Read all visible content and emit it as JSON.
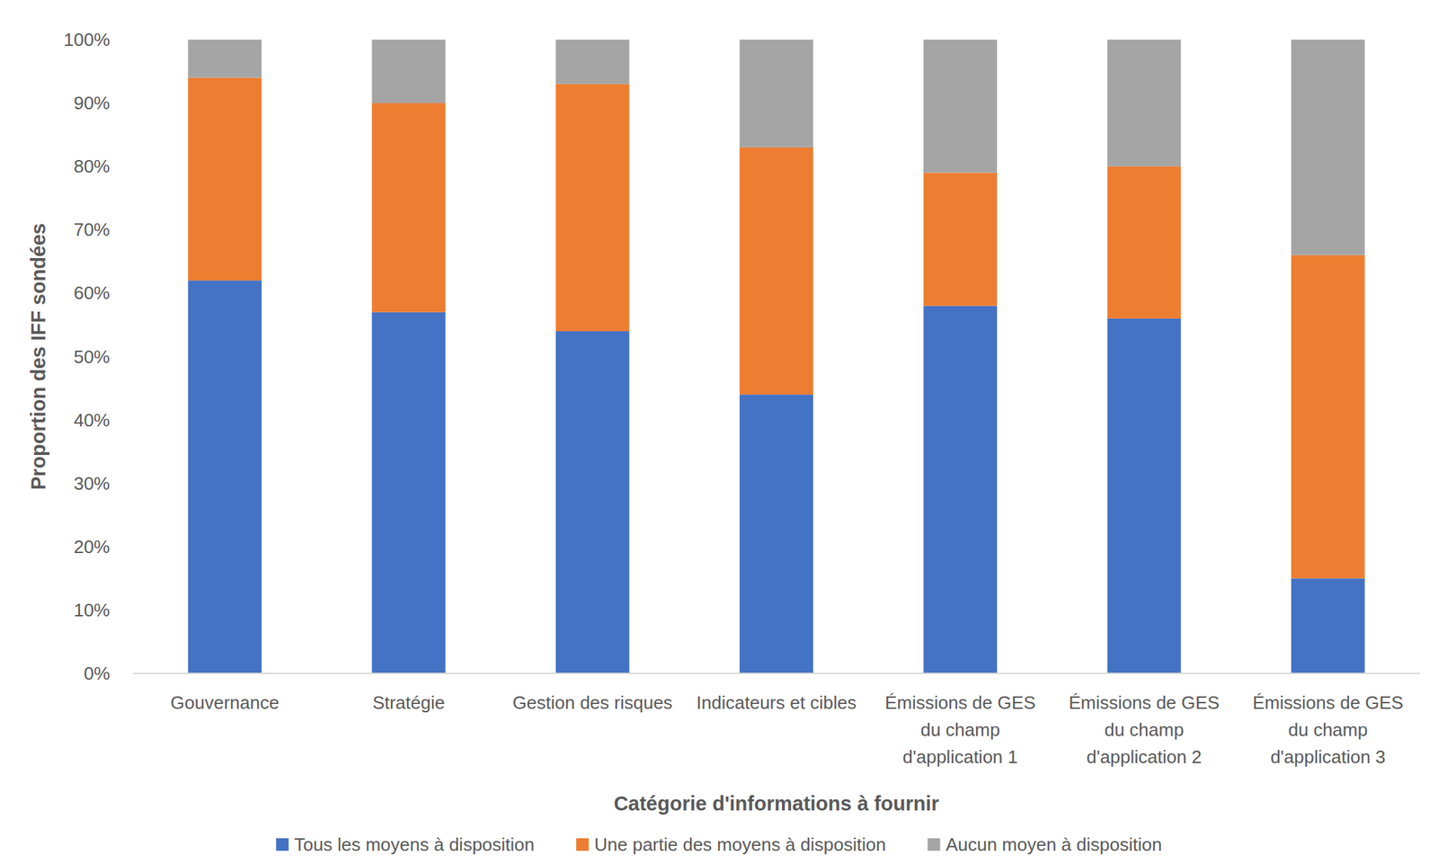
{
  "chart_data": {
    "type": "bar",
    "stacked": true,
    "grid": false,
    "legend": "bottom",
    "x_label": "Catégorie d'informations à fournir",
    "y_label": "Proportion des IFF sondées",
    "categories": [
      "Gouvernance",
      "Stratégie",
      "Gestion des risques",
      "Indicateurs et cibles",
      "Émissions de GES\ndu champ\nd'application 1",
      "Émissions de GES\ndu champ\nd'application 2",
      "Émissions de GES\ndu champ\nd'application 3"
    ],
    "series": [
      {
        "name": "Tous les moyens à disposition",
        "color": "#4472c4",
        "values": [
          62,
          57,
          54,
          44,
          58,
          56,
          15
        ]
      },
      {
        "name": "Une partie des moyens à disposition",
        "color": "#ed7d31",
        "values": [
          32,
          33,
          39,
          39,
          21,
          24,
          51
        ]
      },
      {
        "name": "Aucun moyen à disposition",
        "color": "#a5a5a5",
        "values": [
          6,
          10,
          7,
          17,
          21,
          20,
          34
        ]
      }
    ],
    "ylim": [
      0,
      100
    ],
    "yticks": [
      {
        "value": 0,
        "label": "0%"
      },
      {
        "value": 10,
        "label": "10%"
      },
      {
        "value": 20,
        "label": "20%"
      },
      {
        "value": 30,
        "label": "30%"
      },
      {
        "value": 40,
        "label": "40%"
      },
      {
        "value": 50,
        "label": "50%"
      },
      {
        "value": 60,
        "label": "60%"
      },
      {
        "value": 70,
        "label": "70%"
      },
      {
        "value": 80,
        "label": "80%"
      },
      {
        "value": 90,
        "label": "90%"
      },
      {
        "value": 100,
        "label": "100%"
      }
    ]
  }
}
